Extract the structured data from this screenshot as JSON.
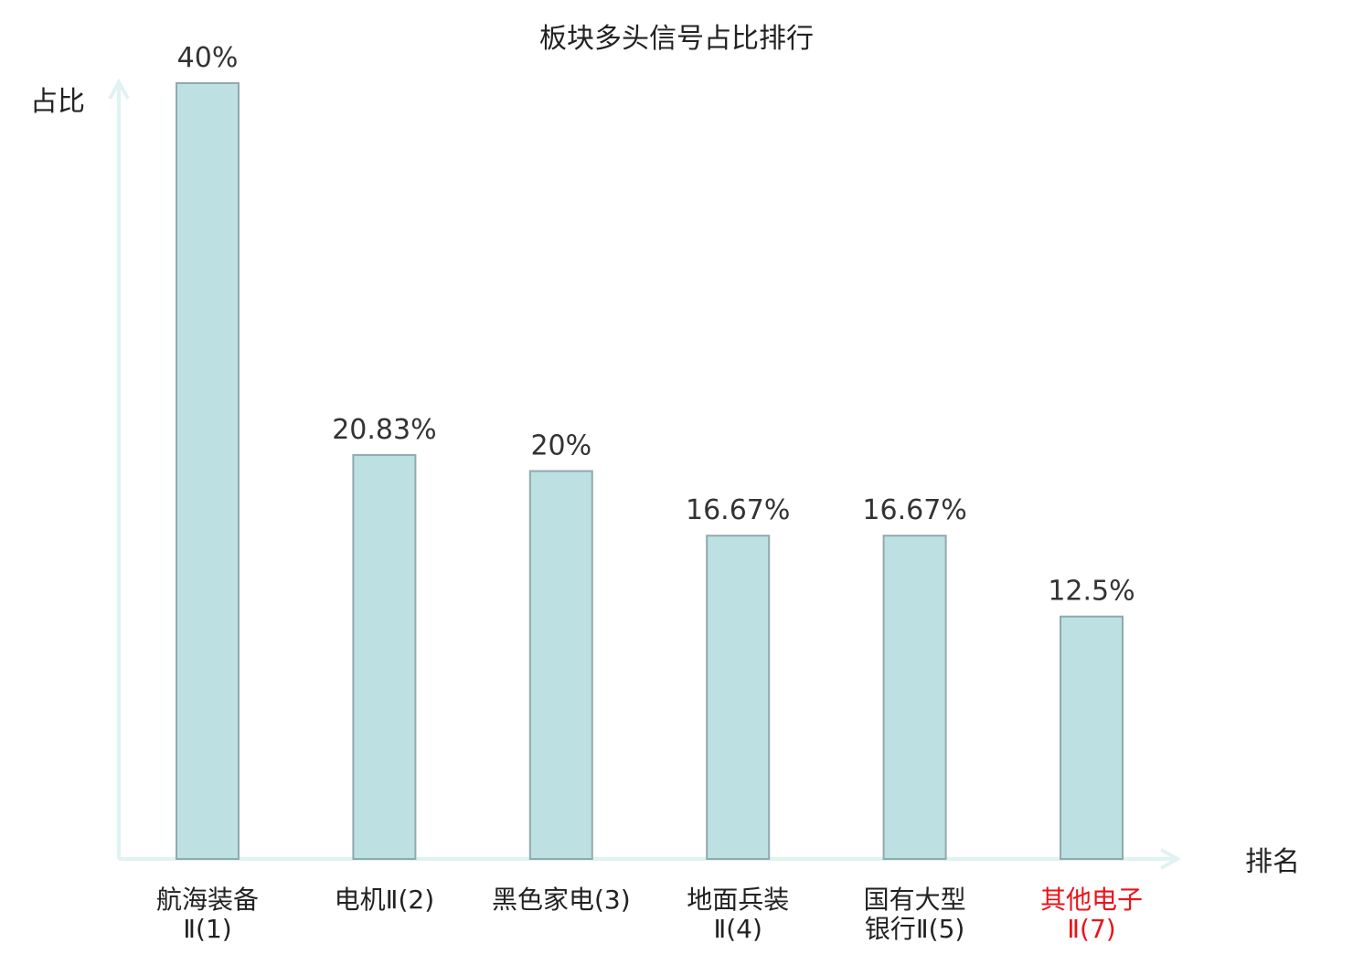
{
  "chart_data": {
    "type": "bar",
    "title": "板块多头信号占比排行",
    "ylabel": "占比",
    "xlabel": "排名",
    "ylim": [
      0,
      40
    ],
    "grid": false,
    "legend": "none",
    "categories": [
      {
        "lines": [
          "航海装备",
          "Ⅱ(1)"
        ],
        "highlight": false
      },
      {
        "lines": [
          "电机Ⅱ(2)"
        ],
        "highlight": false
      },
      {
        "lines": [
          "黑色家电(3)"
        ],
        "highlight": false
      },
      {
        "lines": [
          "地面兵装",
          "Ⅱ(4)"
        ],
        "highlight": false
      },
      {
        "lines": [
          "国有大型",
          "银行Ⅱ(5)"
        ],
        "highlight": false
      },
      {
        "lines": [
          "其他电子",
          "Ⅱ(7)"
        ],
        "highlight": true
      }
    ],
    "values": [
      40,
      20.83,
      20,
      16.67,
      16.67,
      12.5
    ],
    "value_labels": [
      "40%",
      "20.83%",
      "20%",
      "16.67%",
      "16.67%",
      "12.5%"
    ]
  },
  "colors": {
    "bar_fill": "#bde0e3",
    "bar_stroke": "#8faaae",
    "axis": "#e0f2f1",
    "text": "#222222",
    "value_text": "#333333",
    "highlight_text": "#e8141b"
  }
}
